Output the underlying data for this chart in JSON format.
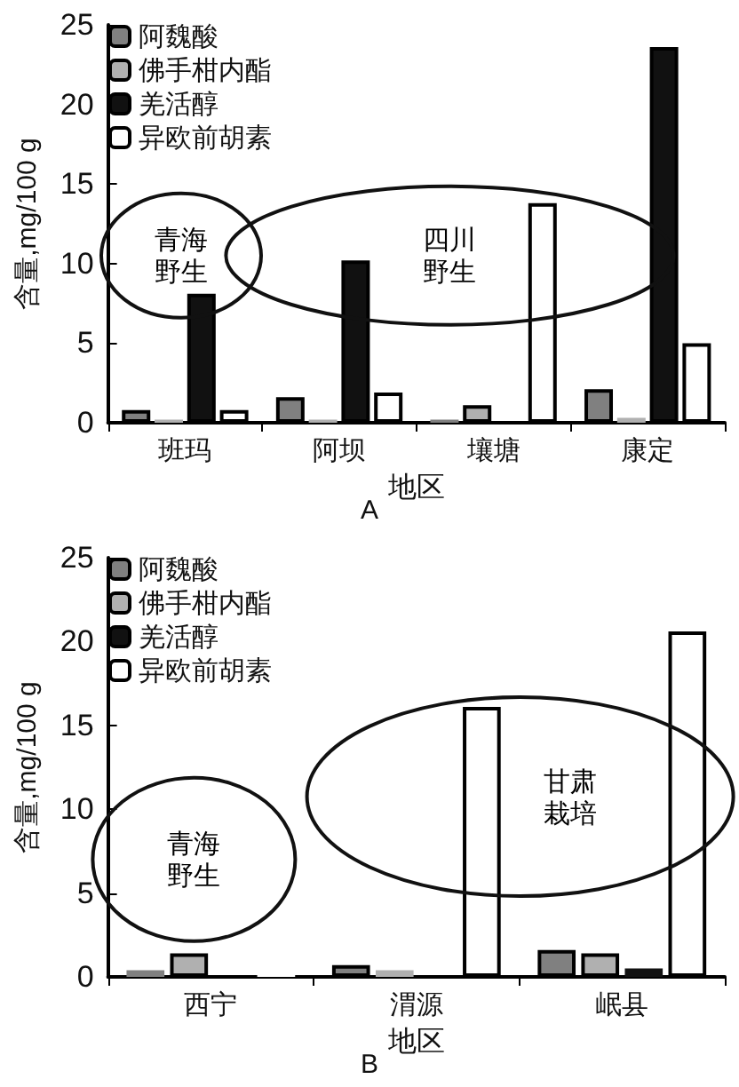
{
  "chart_data": [
    {
      "type": "bar",
      "title": "A",
      "xlabel": "地区",
      "ylabel": "含量,mg/100 g",
      "categories": [
        "班玛",
        "阿坝",
        "壤塘",
        "康定"
      ],
      "series": [
        {
          "name": "阿魏酸",
          "color": "#808080",
          "values": [
            0.8,
            1.6,
            0.2,
            2.1
          ]
        },
        {
          "name": "佛手柑内酯",
          "color": "#b0b0b0",
          "values": [
            0.2,
            0.2,
            1.1,
            0.3
          ]
        },
        {
          "name": "羌活醇",
          "color": "#111111",
          "values": [
            8.1,
            10.2,
            null,
            23.6
          ]
        },
        {
          "name": "异欧前胡素",
          "color": "#ffffff",
          "values": [
            0.8,
            1.9,
            13.8,
            5.0
          ]
        }
      ],
      "ylim": [
        0,
        25
      ],
      "yticks": [
        0,
        5,
        10,
        15,
        20,
        25
      ],
      "grid": false,
      "legend": "top left",
      "annotations": [
        "青海野生",
        "四川野生"
      ]
    },
    {
      "type": "bar",
      "title": "B",
      "xlabel": "地区",
      "ylabel": "含量,mg/100 g",
      "categories": [
        "西宁",
        "渭源",
        "岷县"
      ],
      "series": [
        {
          "name": "阿魏酸",
          "color": "#808080",
          "values": [
            0.4,
            0.7,
            1.6
          ]
        },
        {
          "name": "佛手柑内酯",
          "color": "#b0b0b0",
          "values": [
            1.4,
            0.4,
            1.4
          ]
        },
        {
          "name": "羌活醇",
          "color": "#111111",
          "values": [
            null,
            null,
            0.5
          ]
        },
        {
          "name": "异欧前胡素",
          "color": "#ffffff",
          "values": [
            0.1,
            16.1,
            20.6
          ]
        }
      ],
      "ylim": [
        0,
        25
      ],
      "yticks": [
        0,
        5,
        10,
        15,
        20,
        25
      ],
      "grid": false,
      "legend": "top left",
      "annotations": [
        "青海野生",
        "甘肃栽培"
      ]
    }
  ]
}
